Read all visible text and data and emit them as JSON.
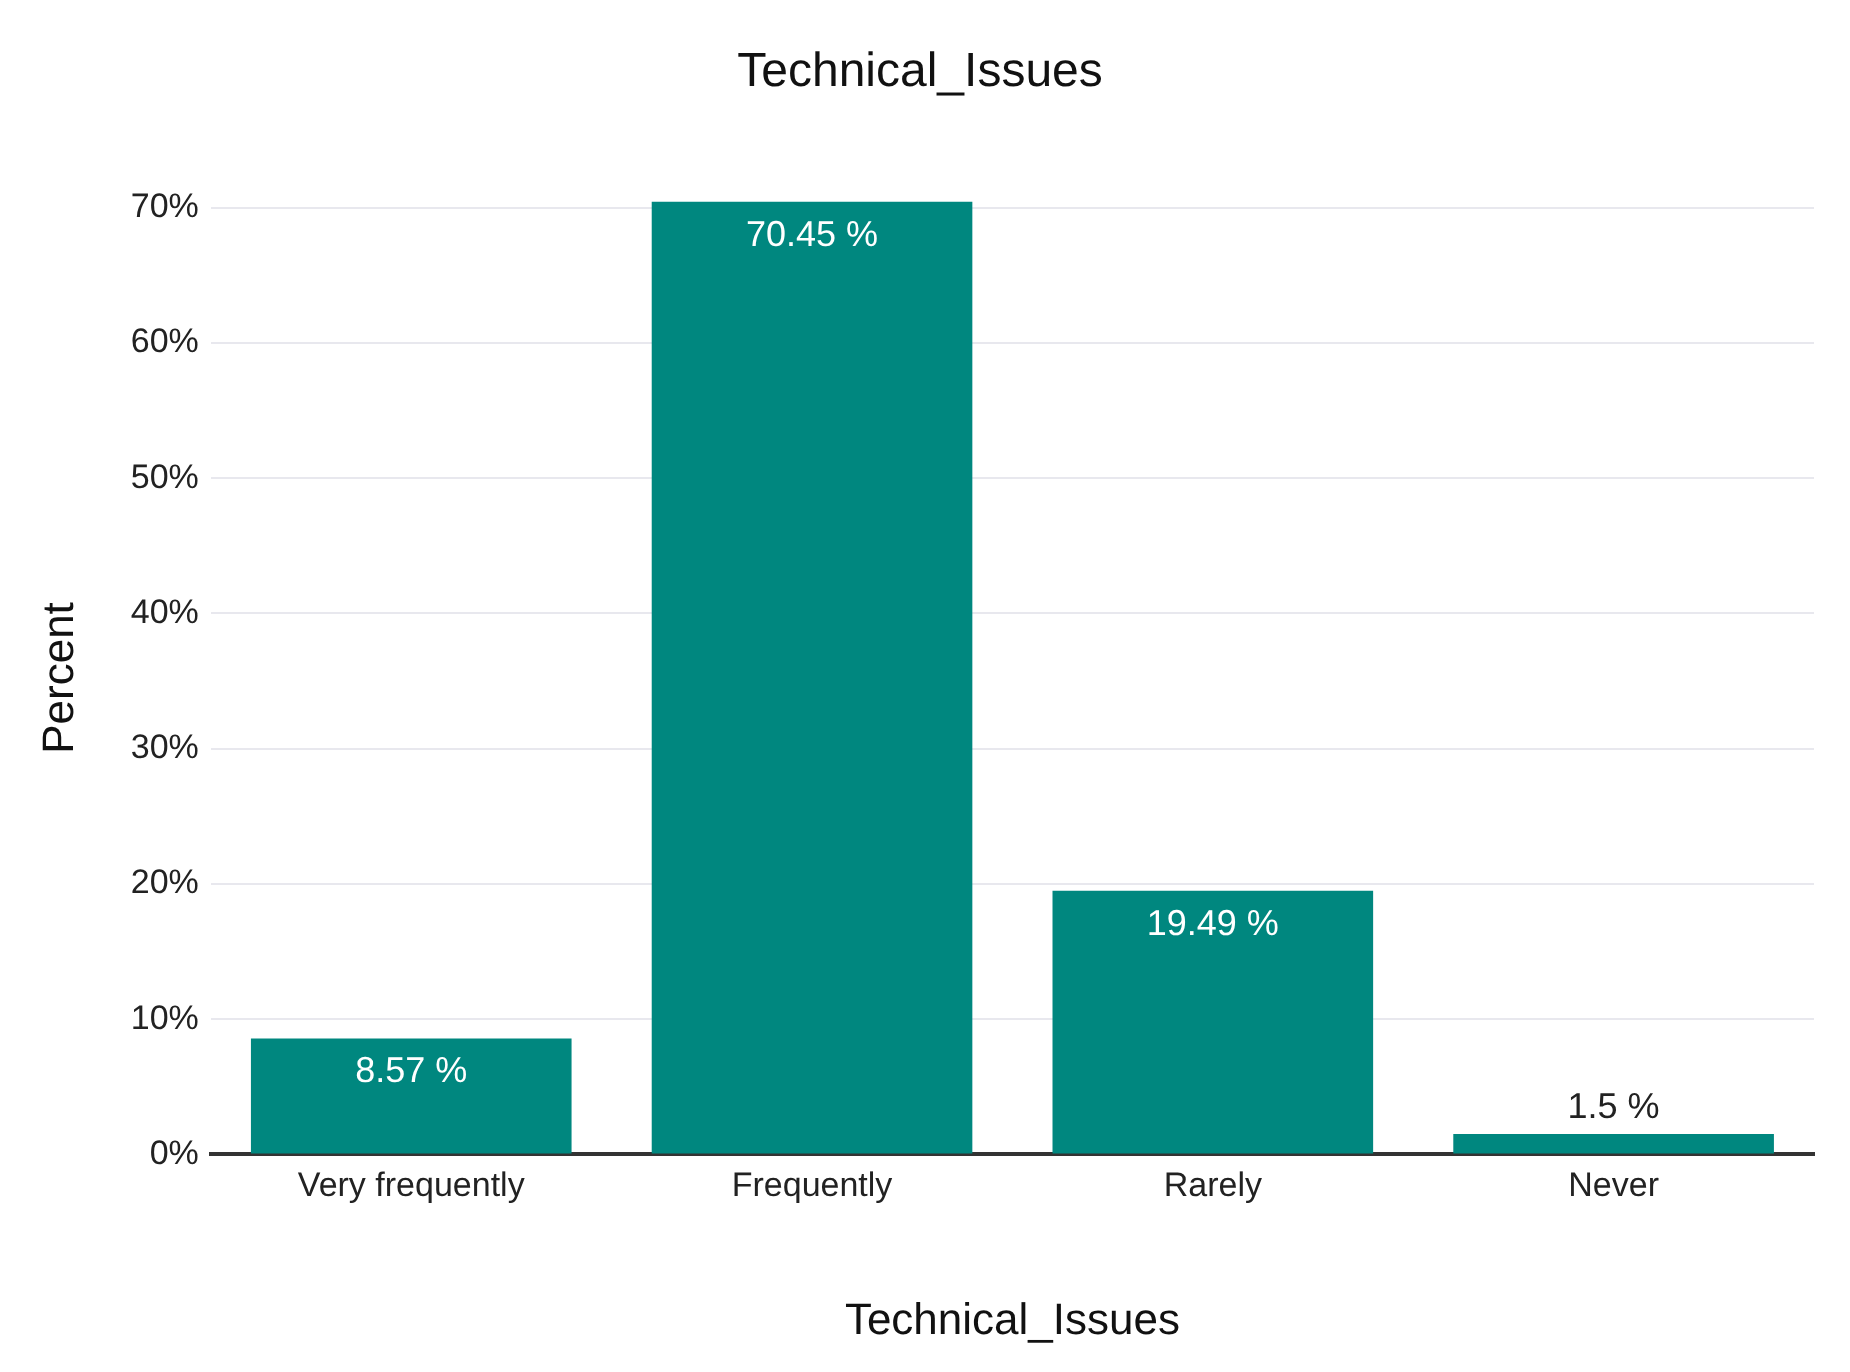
{
  "chart_data": {
    "type": "bar",
    "title": "Technical_Issues",
    "xlabel": "Technical_Issues",
    "ylabel": "Percent",
    "categories": [
      "Very frequently",
      "Frequently",
      "Rarely",
      "Never"
    ],
    "values": [
      8.57,
      70.45,
      19.49,
      1.5
    ],
    "value_labels": [
      "8.57 %",
      "70.45 %",
      "19.49 %",
      "1.5 %"
    ],
    "color": "#00877f",
    "ylim": [
      0,
      70.45
    ],
    "yticks": [
      {
        "value": 0,
        "label": "0%"
      },
      {
        "value": 10,
        "label": "10%"
      },
      {
        "value": 20,
        "label": "20%"
      },
      {
        "value": 30,
        "label": "30%"
      },
      {
        "value": 40,
        "label": "40%"
      },
      {
        "value": 50,
        "label": "50%"
      },
      {
        "value": 60,
        "label": "60%"
      },
      {
        "value": 70,
        "label": "70%"
      }
    ],
    "grid": "y",
    "legend": false
  }
}
